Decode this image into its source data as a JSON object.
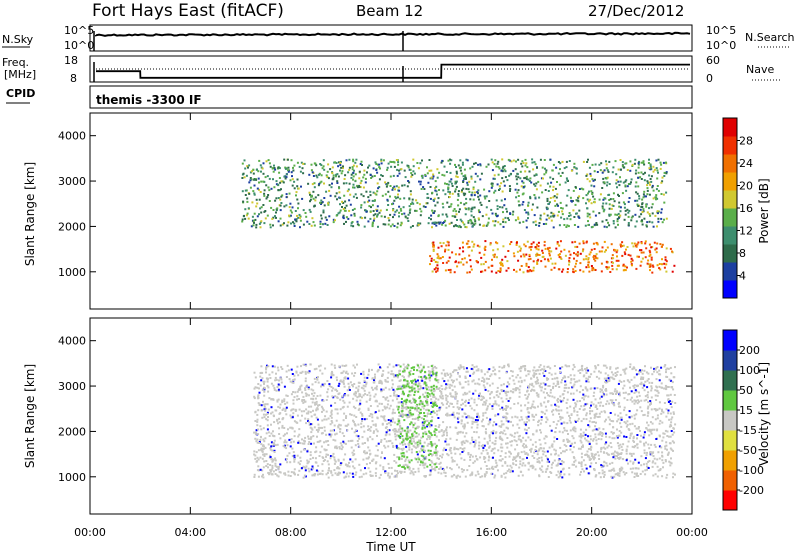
{
  "header": {
    "title": "Fort Hays East (fitACF)",
    "beam": "Beam 12",
    "date": "27/Dec/2012"
  },
  "noise_panel": {
    "left_label": "N.Sky",
    "right_label": "N.Search",
    "left_ticks": [
      "10^5",
      "10^0"
    ],
    "right_ticks": [
      "10^5",
      "10^0"
    ]
  },
  "freq_panel": {
    "left_label_1": "Freq.",
    "left_label_2": "[MHz]",
    "right_label": "Nave",
    "left_ticks": [
      "18",
      "8"
    ],
    "right_ticks": [
      "60",
      "0"
    ],
    "freq_values": [
      {
        "t": 0,
        "f": 12
      },
      {
        "t": 2,
        "f": 12
      },
      {
        "t": 2.01,
        "f": 9
      },
      {
        "t": 14,
        "f": 9
      },
      {
        "t": 14.01,
        "f": 15
      },
      {
        "t": 24,
        "f": 15
      }
    ]
  },
  "cpid_panel": {
    "label": "CPID",
    "mode": "themis -3300 IF"
  },
  "chart_data": [
    {
      "type": "heatmap",
      "title": "Power",
      "ylabel": "Slant Range [km]",
      "xlabel": "Time UT",
      "x_ticks": [
        "00:00",
        "04:00",
        "08:00",
        "12:00",
        "16:00",
        "20:00",
        "00:00"
      ],
      "xlim": [
        0,
        24
      ],
      "ylim": [
        180,
        4500
      ],
      "y_ticks": [
        1000,
        2000,
        3000,
        4000
      ],
      "colorbar": {
        "label": "Power [dB]",
        "range": [
          0,
          32
        ],
        "ticks": [
          "28",
          "24",
          "20",
          "16",
          "12",
          "8",
          "4"
        ],
        "colors": [
          "#0000ff",
          "#1c3fa0",
          "#2e6b4a",
          "#3d8e6e",
          "#5aae4a",
          "#d0c830",
          "#f0a000",
          "#f07000",
          "#f03000",
          "#e00000"
        ]
      },
      "features": [
        {
          "name": "main echo band",
          "t_start": 13.5,
          "t_end": 23.3,
          "range_km": [
            1000,
            1700
          ],
          "power_db": 26
        },
        {
          "name": "upper scatter band",
          "t_start": 6,
          "t_end": 23,
          "range_km": [
            2000,
            3500
          ],
          "power_db": 10
        }
      ]
    },
    {
      "type": "heatmap",
      "title": "Velocity",
      "ylabel": "Slant Range [km]",
      "xlabel": "Time UT",
      "x_ticks": [
        "00:00",
        "04:00",
        "08:00",
        "12:00",
        "16:00",
        "20:00",
        "00:00"
      ],
      "xlim": [
        0,
        24
      ],
      "ylim": [
        180,
        4500
      ],
      "y_ticks": [
        1000,
        2000,
        3000,
        4000
      ],
      "colorbar": {
        "label": "Velocity [m s^-1]",
        "range": [
          -250,
          250
        ],
        "ticks": [
          "200",
          "100",
          "50",
          "15",
          "-15",
          "-50",
          "-100",
          "-200"
        ],
        "colors": [
          "#ff0000",
          "#f06000",
          "#f0a000",
          "#e0e040",
          "#c8c8c4",
          "#60c840",
          "#307050",
          "#2040a0",
          "#0000ff"
        ]
      },
      "features": [
        {
          "name": "ground scatter",
          "t_start": 6.5,
          "t_end": 23.3,
          "range_km": [
            1000,
            3500
          ],
          "velocity": 0
        },
        {
          "name": "streak",
          "t_start": 12.2,
          "t_end": 13.8,
          "range_km": [
            1200,
            3500
          ],
          "velocity": 30
        }
      ]
    }
  ]
}
